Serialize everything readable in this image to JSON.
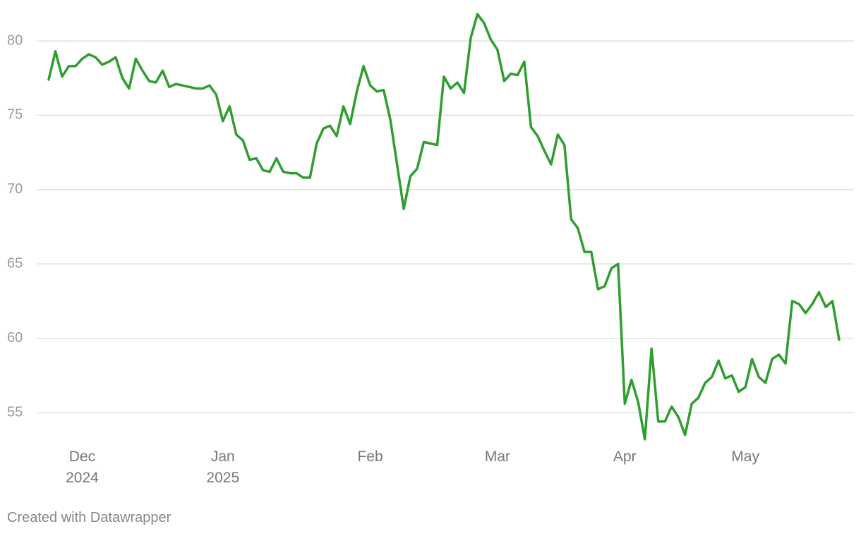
{
  "chart_data": {
    "type": "line",
    "categories": [
      null,
      null,
      null,
      null,
      null,
      "Dec\n2024",
      null,
      null,
      null,
      null,
      null,
      null,
      null,
      null,
      null,
      null,
      null,
      null,
      null,
      null,
      null,
      null,
      null,
      null,
      null,
      null,
      "Jan\n2025",
      null,
      null,
      null,
      null,
      null,
      null,
      null,
      null,
      null,
      null,
      null,
      null,
      null,
      null,
      null,
      null,
      null,
      null,
      null,
      null,
      null,
      "Feb",
      null,
      null,
      null,
      null,
      null,
      null,
      null,
      null,
      null,
      null,
      null,
      null,
      null,
      null,
      null,
      null,
      null,
      null,
      "Mar",
      null,
      null,
      null,
      null,
      null,
      null,
      null,
      null,
      null,
      null,
      null,
      null,
      null,
      null,
      null,
      null,
      null,
      null,
      "Apr",
      null,
      null,
      null,
      null,
      null,
      null,
      null,
      null,
      null,
      null,
      null,
      null,
      null,
      null,
      null,
      null,
      null,
      "May",
      null,
      null,
      null,
      null,
      null,
      null,
      null,
      null,
      null,
      null,
      null,
      null,
      null,
      null
    ],
    "series": [
      {
        "color": "#2f9e2f",
        "values": [
          77.4,
          79.3,
          77.6,
          78.3,
          78.3,
          78.8,
          79.1,
          78.9,
          78.4,
          78.6,
          78.9,
          77.5,
          76.8,
          78.8,
          78.0,
          77.3,
          77.2,
          78.0,
          76.9,
          77.1,
          77.0,
          76.9,
          76.8,
          76.8,
          77.0,
          76.4,
          74.6,
          75.6,
          73.7,
          73.3,
          72.0,
          72.1,
          71.3,
          71.2,
          72.1,
          71.2,
          71.1,
          71.1,
          70.8,
          70.8,
          73.1,
          74.1,
          74.3,
          73.6,
          75.6,
          74.4,
          76.6,
          78.3,
          77.0,
          76.6,
          76.7,
          74.7,
          71.7,
          68.7,
          70.9,
          71.4,
          73.2,
          73.1,
          73.0,
          77.6,
          76.8,
          77.2,
          76.5,
          80.2,
          81.8,
          81.2,
          80.1,
          79.4,
          77.3,
          77.8,
          77.7,
          78.6,
          74.2,
          73.6,
          72.6,
          71.7,
          73.7,
          73.0,
          68.0,
          67.4,
          65.8,
          65.8,
          63.3,
          63.5,
          64.7,
          65.0,
          55.6,
          57.2,
          55.7,
          53.2,
          59.3,
          54.4,
          54.4,
          55.4,
          54.7,
          53.5,
          55.6,
          56.0,
          57.0,
          57.4,
          58.5,
          57.3,
          57.5,
          56.4,
          56.7,
          58.6,
          57.4,
          57.0,
          58.6,
          58.9,
          58.3,
          62.5,
          62.3,
          61.7,
          62.3,
          63.1,
          62.1,
          62.5,
          59.9
        ]
      }
    ],
    "ylim": [
      52.5,
      82.5
    ],
    "yticks": [
      55,
      60,
      65,
      70,
      75,
      80
    ],
    "grid": true,
    "footer": "Created with Datawrapper"
  }
}
